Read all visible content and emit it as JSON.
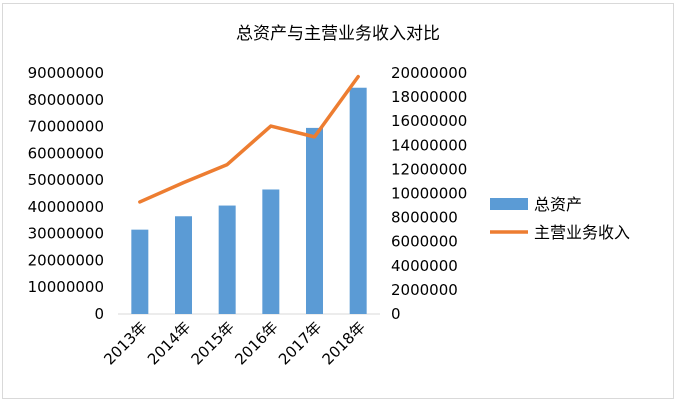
{
  "chart_data": {
    "type": "bar",
    "title": "总资产与主营业务收入对比",
    "categories": [
      "2013年",
      "2014年",
      "2015年",
      "2016年",
      "2017年",
      "2018年"
    ],
    "series": [
      {
        "name": "总资产",
        "type": "bar",
        "axis": "left",
        "color": "#5b9bd5",
        "values": [
          31500000,
          36500000,
          40500000,
          46500000,
          69500000,
          84500000
        ]
      },
      {
        "name": "主营业务收入",
        "type": "line",
        "axis": "right",
        "color": "#ed7d31",
        "values": [
          9300000,
          10900000,
          12400000,
          15600000,
          14700000,
          19700000
        ]
      }
    ],
    "left_axis": {
      "ylim": [
        0,
        90000000
      ],
      "ticks": [
        "0",
        "10000000",
        "20000000",
        "30000000",
        "40000000",
        "50000000",
        "60000000",
        "70000000",
        "80000000",
        "90000000"
      ]
    },
    "right_axis": {
      "ylim": [
        0,
        20000000
      ],
      "ticks": [
        "0",
        "2000000",
        "4000000",
        "6000000",
        "8000000",
        "10000000",
        "12000000",
        "14000000",
        "16000000",
        "18000000",
        "20000000"
      ]
    },
    "grid": false,
    "legend": "right"
  }
}
